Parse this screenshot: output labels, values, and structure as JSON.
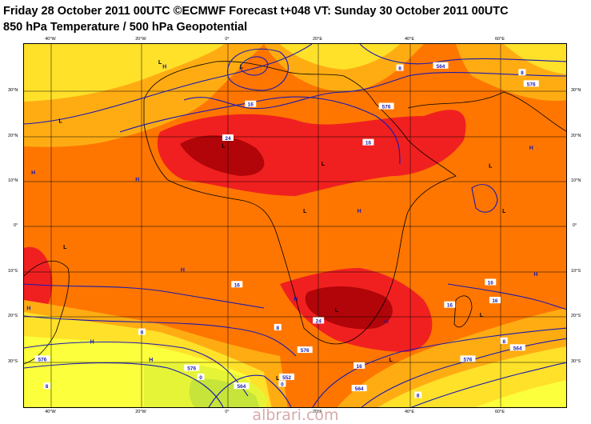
{
  "header": {
    "line1": "Friday 28 October 2011 00UTC ©ECMWF Forecast t+048 VT: Sunday 30 October 2011 00UTC",
    "line2": "850 hPa Temperature / 500 hPa Geopotential"
  },
  "longitude_labels": [
    "40°W",
    "20°W",
    "0°",
    "20°E",
    "40°E",
    "60°E"
  ],
  "latitude_labels": [
    "30°N",
    "20°N",
    "10°N",
    "0°",
    "10°S",
    "20°S",
    "30°S"
  ],
  "pressure_centers": [
    {
      "label": "L",
      "lon": 3,
      "lat": 35
    },
    {
      "label": "L",
      "lon": -15,
      "lat": 36
    },
    {
      "label": "H",
      "lon": -14,
      "lat": 35
    },
    {
      "label": "L",
      "lon": -37,
      "lat": 23
    },
    {
      "label": "L",
      "lon": -1,
      "lat": 17.5
    },
    {
      "label": "L",
      "lon": 21,
      "lat": 13.5
    },
    {
      "label": "H",
      "lon": -43,
      "lat": 11.5
    },
    {
      "label": "H",
      "lon": -20,
      "lat": 10
    },
    {
      "label": "L",
      "lon": 17,
      "lat": 3
    },
    {
      "label": "H",
      "lon": 29,
      "lat": 3
    },
    {
      "label": "L",
      "lon": 58,
      "lat": 13
    },
    {
      "label": "H",
      "lon": 67,
      "lat": 17
    },
    {
      "label": "L",
      "lon": 61,
      "lat": 3
    },
    {
      "label": "L",
      "lon": -36,
      "lat": -5
    },
    {
      "label": "H",
      "lon": -10,
      "lat": -10
    },
    {
      "label": "H",
      "lon": -44,
      "lat": -18.5
    },
    {
      "label": "H",
      "lon": 68,
      "lat": -11
    },
    {
      "label": "H",
      "lon": 15,
      "lat": -16.5
    },
    {
      "label": "L",
      "lon": 24,
      "lat": -19
    },
    {
      "label": "H",
      "lon": 35,
      "lat": -21.5
    },
    {
      "label": "L",
      "lon": 56,
      "lat": -20
    },
    {
      "label": "H",
      "lon": -30,
      "lat": -26
    },
    {
      "label": "H",
      "lon": -17,
      "lat": -30
    },
    {
      "label": "L",
      "lon": 11,
      "lat": -34
    },
    {
      "label": "L",
      "lon": 36,
      "lat": -30
    }
  ],
  "contour_labels": [
    {
      "text": "8",
      "lon": 38,
      "lat": 35
    },
    {
      "text": "564",
      "lon": 47,
      "lat": 35.5
    },
    {
      "text": "8",
      "lon": 65,
      "lat": 34
    },
    {
      "text": "576",
      "lon": 67,
      "lat": 31.5
    },
    {
      "text": "576",
      "lon": 35,
      "lat": 26.5
    },
    {
      "text": "16",
      "lon": 5,
      "lat": 27
    },
    {
      "text": "16",
      "lon": 31,
      "lat": 18.5
    },
    {
      "text": "24",
      "lon": 0,
      "lat": 19.5
    },
    {
      "text": "16",
      "lon": 2,
      "lat": -13
    },
    {
      "text": "16",
      "lon": 58,
      "lat": -12.5
    },
    {
      "text": "16",
      "lon": 59,
      "lat": -16.5
    },
    {
      "text": "16",
      "lon": 49,
      "lat": -17.5
    },
    {
      "text": "8",
      "lon": -19,
      "lat": -23.5
    },
    {
      "text": "8",
      "lon": 11,
      "lat": -22.5
    },
    {
      "text": "24",
      "lon": 20,
      "lat": -21
    },
    {
      "text": "8",
      "lon": 61,
      "lat": -25.5
    },
    {
      "text": "564",
      "lon": 64,
      "lat": -27
    },
    {
      "text": "576",
      "lon": -41,
      "lat": -29.5
    },
    {
      "text": "576",
      "lon": 17,
      "lat": -27.5
    },
    {
      "text": "576",
      "lon": 53,
      "lat": -29.5
    },
    {
      "text": "576",
      "lon": -8,
      "lat": -31.5
    },
    {
      "text": "16",
      "lon": 29,
      "lat": -31
    },
    {
      "text": "0",
      "lon": -6,
      "lat": -33.5
    },
    {
      "text": "0",
      "lon": 12,
      "lat": -35
    },
    {
      "text": "552",
      "lon": 13,
      "lat": -33.5
    },
    {
      "text": "564",
      "lon": 3,
      "lat": -35.5
    },
    {
      "text": "564",
      "lon": 29,
      "lat": -36
    },
    {
      "text": "8",
      "lon": -40,
      "lat": -35.5
    },
    {
      "text": "8",
      "lon": 42,
      "lat": -37.5
    }
  ],
  "temperature_colors": {
    "lt0": "#c6e43a",
    "0to4": "#e6f437",
    "4to8": "#fcff3b",
    "8to12": "#ffe12a",
    "12to16": "#ffac13",
    "16to20": "#fe7600",
    "20to24": "#f02020",
    "gt24": "#b10509"
  },
  "watermark": "albrari.com"
}
